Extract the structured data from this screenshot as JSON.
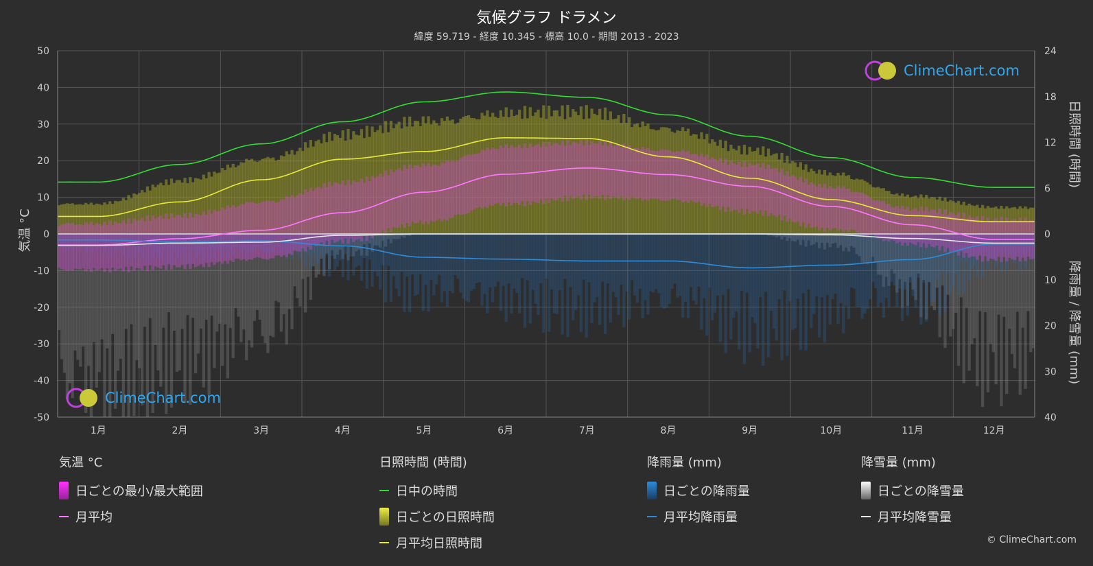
{
  "title": "気候グラフ ドラメン",
  "subtitle": "緯度 59.719 - 経度 10.345 - 標高 10.0 - 期間 2013 - 2023",
  "brand": "ClimeChart.com",
  "copyright": "© ClimeChart.com",
  "colors": {
    "background": "#2d2d2d",
    "daylight": "#33dd33",
    "sunshine_line": "#e8e83a",
    "sunshine_fill": "#a8a82a",
    "temp_range": "#d94ed9",
    "temp_mean": "#ff77ff",
    "rain": "#2e8bd8",
    "snow": "#e8e8e8",
    "brand": "#2ea8f0"
  },
  "chart_data": {
    "type": "line",
    "categories": [
      "1月",
      "2月",
      "3月",
      "4月",
      "5月",
      "6月",
      "7月",
      "8月",
      "9月",
      "10月",
      "11月",
      "12月"
    ],
    "axes": {
      "left": {
        "label": "気温 °C",
        "range": [
          -50,
          50
        ],
        "ticks": [
          50,
          40,
          30,
          20,
          10,
          0,
          -10,
          -20,
          -30,
          -40,
          -50
        ]
      },
      "right_top": {
        "label": "日照時間 (時間)",
        "range": [
          0,
          24
        ],
        "ticks": [
          24,
          18,
          12,
          6,
          0
        ]
      },
      "right_bottom": {
        "label": "降雨量 / 降雪量 (mm)",
        "range": [
          0,
          40
        ],
        "ticks": [
          0,
          10,
          20,
          30,
          40
        ]
      }
    },
    "grid": true,
    "series": [
      {
        "name": "日中の時間",
        "axis": "right_top",
        "values": [
          6.8,
          9.1,
          11.8,
          14.7,
          17.3,
          18.6,
          17.9,
          15.6,
          12.8,
          10.0,
          7.4,
          6.1
        ]
      },
      {
        "name": "月平均日照時間",
        "axis": "right_top",
        "values": [
          2.3,
          4.2,
          7.1,
          9.8,
          10.8,
          12.6,
          12.5,
          10.1,
          7.3,
          4.5,
          2.4,
          1.6
        ]
      },
      {
        "name": "月平均",
        "axis": "left",
        "values": [
          -3.0,
          -1.3,
          1.0,
          5.8,
          11.4,
          16.3,
          18.0,
          16.2,
          13.0,
          7.5,
          2.5,
          -1.5
        ]
      },
      {
        "name": "月平均降雨量",
        "axis": "right_bottom",
        "values": [
          1.3,
          1.8,
          1.5,
          2.6,
          5.1,
          5.5,
          5.9,
          5.9,
          7.4,
          6.8,
          5.6,
          2.2
        ]
      },
      {
        "name": "月平均降雪量",
        "axis": "right_bottom",
        "values": [
          2.5,
          2.0,
          1.8,
          0.3,
          0,
          0,
          0,
          0,
          0,
          0.2,
          1.0,
          2.0
        ]
      }
    ],
    "daily_temp_range": {
      "min": [
        -8,
        -7,
        -5,
        0,
        5,
        10,
        12,
        11,
        8,
        3,
        -1,
        -5
      ],
      "max": [
        1,
        3,
        7,
        12,
        17,
        22,
        23,
        21,
        17,
        11,
        5,
        2
      ]
    },
    "daily_sunshine_max": [
      4,
      7,
      10,
      13,
      15,
      16,
      16,
      14,
      11,
      8,
      5,
      3.5
    ]
  },
  "legend": {
    "temp": {
      "head": "気温 °C",
      "range": "日ごとの最小/最大範囲",
      "mean": "月平均"
    },
    "sun": {
      "head": "日照時間 (時間)",
      "daylight": "日中の時間",
      "daily": "日ごとの日照時間",
      "mean": "月平均日照時間"
    },
    "rain": {
      "head": "降雨量 (mm)",
      "daily": "日ごとの降雨量",
      "mean": "月平均降雨量"
    },
    "snow": {
      "head": "降雪量 (mm)",
      "daily": "日ごとの降雪量",
      "mean": "月平均降雪量"
    }
  }
}
